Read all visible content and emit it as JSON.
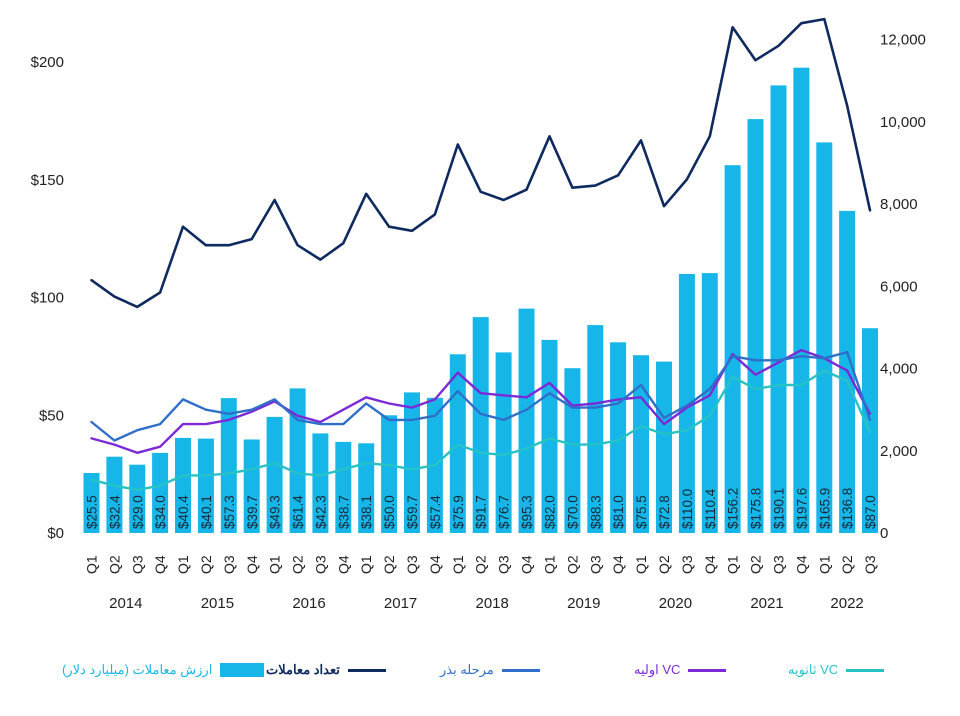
{
  "chart_data": {
    "type": "bar",
    "title": "",
    "quarters": [
      "Q1",
      "Q2",
      "Q3",
      "Q4",
      "Q1",
      "Q2",
      "Q3",
      "Q4",
      "Q1",
      "Q2",
      "Q3",
      "Q4",
      "Q1",
      "Q2",
      "Q3",
      "Q4",
      "Q1",
      "Q2",
      "Q3",
      "Q4",
      "Q1",
      "Q2",
      "Q3",
      "Q4",
      "Q1",
      "Q2",
      "Q3",
      "Q4",
      "Q1",
      "Q2",
      "Q3",
      "Q4",
      "Q1",
      "Q2",
      "Q3"
    ],
    "years": [
      {
        "label": "2014",
        "start": 0,
        "end": 3
      },
      {
        "label": "2015",
        "start": 4,
        "end": 7
      },
      {
        "label": "2016",
        "start": 8,
        "end": 11
      },
      {
        "label": "2017",
        "start": 12,
        "end": 15
      },
      {
        "label": "2018",
        "start": 16,
        "end": 19
      },
      {
        "label": "2019",
        "start": 20,
        "end": 23
      },
      {
        "label": "2020",
        "start": 24,
        "end": 27
      },
      {
        "label": "2021",
        "start": 28,
        "end": 31
      },
      {
        "label": "2022",
        "start": 32,
        "end": 34
      }
    ],
    "bar_labels": [
      "$25.5",
      "$32.4",
      "$29.0",
      "$34.0",
      "$40.4",
      "$40.1",
      "$57.3",
      "$39.7",
      "$49.3",
      "$61.4",
      "$42.3",
      "$38.7",
      "$38.1",
      "$50.0",
      "$59.7",
      "$57.4",
      "$75.9",
      "$91.7",
      "$76.7",
      "$95.3",
      "$82.0",
      "$70.0",
      "$88.3",
      "$81.0",
      "$75.5",
      "$72.8",
      "$110.0",
      "$110.4",
      "$156.2",
      "$175.8",
      "$190.1",
      "$197.6",
      "$165.9",
      "$136.8",
      "$87.0"
    ],
    "left_axis": {
      "min": 0,
      "max": 220,
      "ticks": [
        0,
        50,
        100,
        150,
        200
      ],
      "tick_labels": [
        "$0",
        "$50",
        "$100",
        "$150",
        "$200"
      ]
    },
    "right_axis": {
      "min": 0,
      "max": 12600,
      "ticks": [
        0,
        2000,
        4000,
        6000,
        8000,
        10000,
        12000
      ],
      "tick_labels": [
        "0",
        "2,000",
        "4,000",
        "6,000",
        "8,000",
        "10,000",
        "12,000"
      ]
    },
    "series": [
      {
        "name": "ارزش معاملات (میلیارد دلار)",
        "kind": "bar",
        "axis": "left",
        "color": "#16b7e8",
        "values": [
          25.5,
          32.4,
          29.0,
          34.0,
          40.4,
          40.1,
          57.3,
          39.7,
          49.3,
          61.4,
          42.3,
          38.7,
          38.1,
          50.0,
          59.7,
          57.4,
          75.9,
          91.7,
          76.7,
          95.3,
          82.0,
          70.0,
          88.3,
          81.0,
          75.5,
          72.8,
          110.0,
          110.4,
          156.2,
          175.8,
          190.1,
          197.6,
          165.9,
          136.8,
          87.0
        ]
      },
      {
        "name": "تعداد معاملات",
        "kind": "line",
        "axis": "right",
        "color": "#0f2a5e",
        "values": [
          6150,
          5750,
          5500,
          5850,
          7450,
          7000,
          7000,
          7150,
          8100,
          7000,
          6650,
          7050,
          8250,
          7450,
          7350,
          7750,
          9450,
          8300,
          8100,
          8350,
          9650,
          8400,
          8450,
          8700,
          9550,
          7950,
          8600,
          9650,
          12300,
          11500,
          11850,
          12400,
          12500,
          10400,
          7850
        ]
      },
      {
        "name": "مرحله بذر",
        "kind": "line",
        "axis": "right",
        "color": "#2f6fc9",
        "values": [
          2700,
          2250,
          2500,
          2650,
          3250,
          3000,
          2900,
          3000,
          3250,
          2750,
          2650,
          2650,
          3150,
          2750,
          2750,
          2850,
          3450,
          2900,
          2750,
          3000,
          3400,
          3050,
          3050,
          3150,
          3600,
          2800,
          3100,
          3500,
          4300,
          4200,
          4200,
          4300,
          4250,
          4400,
          2750
        ]
      },
      {
        "name": "VC اولیه",
        "kind": "line",
        "axis": "right",
        "color": "#7b2ad6",
        "values": [
          2300,
          2150,
          1950,
          2100,
          2650,
          2650,
          2750,
          2950,
          3200,
          2850,
          2700,
          3000,
          3300,
          3150,
          3050,
          3250,
          3900,
          3400,
          3350,
          3300,
          3650,
          3100,
          3150,
          3250,
          3300,
          2650,
          3050,
          3350,
          4350,
          3850,
          4150,
          4450,
          4250,
          3950,
          2900
        ]
      },
      {
        "name": "VC ثانویه",
        "kind": "line",
        "axis": "right",
        "color": "#26c2c6",
        "values": [
          1300,
          1150,
          1050,
          1150,
          1400,
          1400,
          1450,
          1550,
          1700,
          1450,
          1400,
          1550,
          1700,
          1650,
          1550,
          1650,
          2150,
          1950,
          1900,
          2050,
          2300,
          2150,
          2150,
          2250,
          2600,
          2400,
          2500,
          2850,
          3800,
          3500,
          3600,
          3600,
          3950,
          3700,
          2450
        ]
      }
    ]
  },
  "legend": {
    "bars": "ارزش معاملات (میلیارد دلار)",
    "deals": "تعداد معاملات",
    "seed": "مرحله بذر",
    "early": "VC اولیه",
    "late": "VC ثانویه"
  }
}
